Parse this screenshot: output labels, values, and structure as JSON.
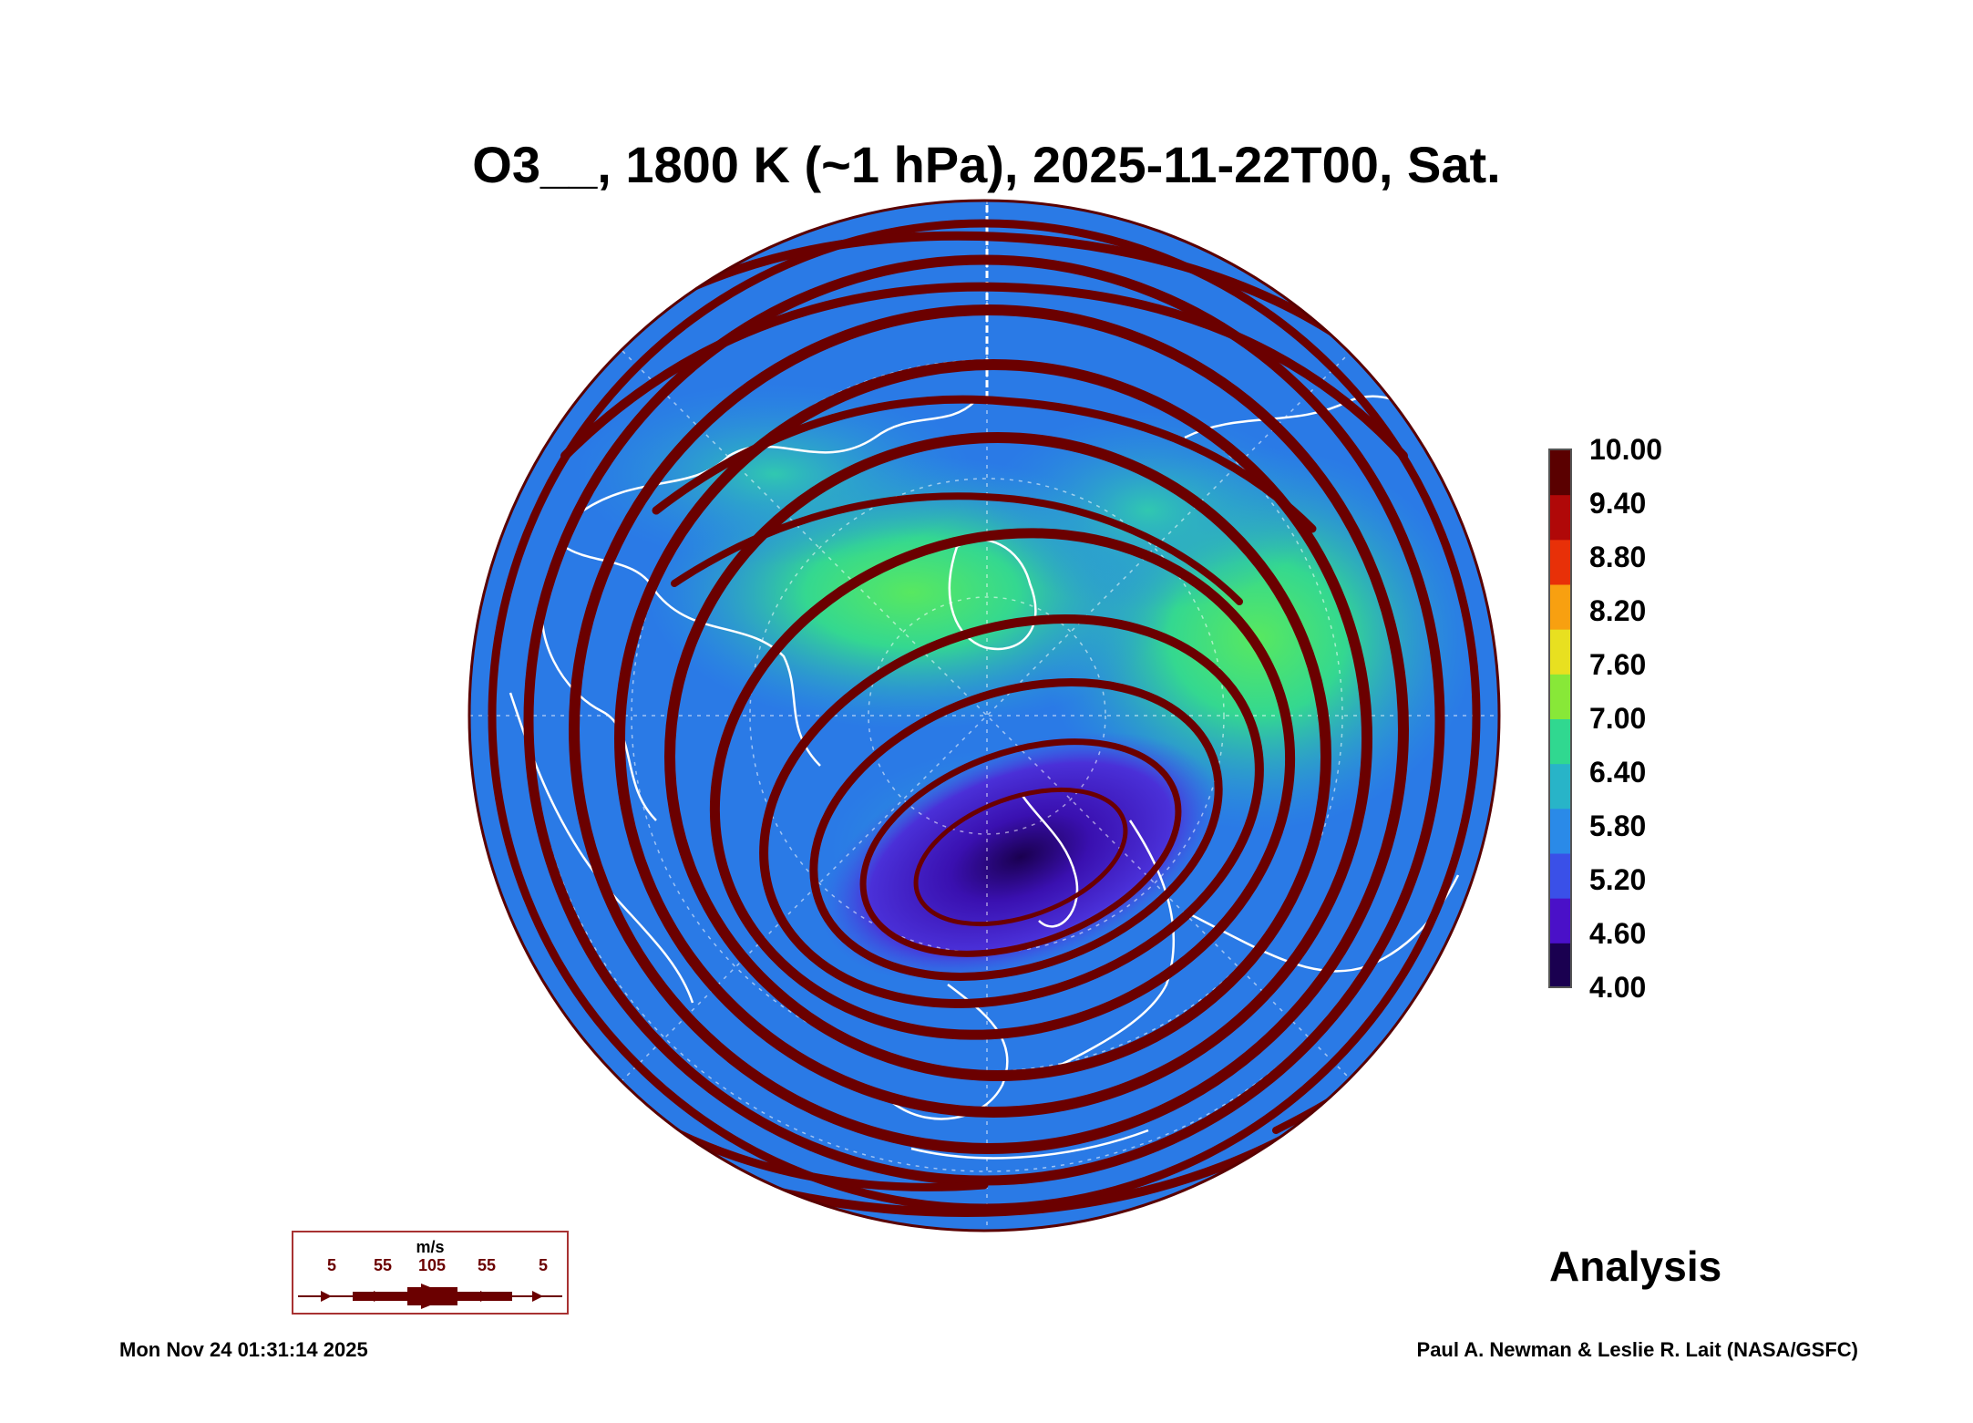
{
  "title": "O3__, 1800 K (~1 hPa), 2025-11-22T00, Sat.",
  "colorbar": {
    "labels": [
      "10.00",
      "9.40",
      "8.80",
      "8.20",
      "7.60",
      "7.00",
      "6.40",
      "5.80",
      "5.20",
      "4.60",
      "4.00"
    ],
    "min": 4.0,
    "max": 10.0,
    "colors": [
      "#1a0050",
      "#4a10c8",
      "#3a50e8",
      "#2a8ae8",
      "#28b4c8",
      "#30d890",
      "#88e838",
      "#e8e020",
      "#f8a010",
      "#e83008",
      "#b00808",
      "#5a0000"
    ]
  },
  "map": {
    "projection": "orthographic-north-polar",
    "field_colors": {
      "background": "#2a7ae6",
      "high": "#34d88c",
      "low": "#4a18c8",
      "minimum": "#1a0050"
    },
    "streamline_color": "#6b0000",
    "coastline_color": "#ffffff"
  },
  "wind_legend": {
    "unit": "m/s",
    "values": [
      "5",
      "55",
      "105",
      "55",
      "5"
    ]
  },
  "label_analysis": "Analysis",
  "timestamp": "Mon Nov 24 01:31:14 2025",
  "credit": "Paul A. Newman & Leslie R. Lait (NASA/GSFC)"
}
